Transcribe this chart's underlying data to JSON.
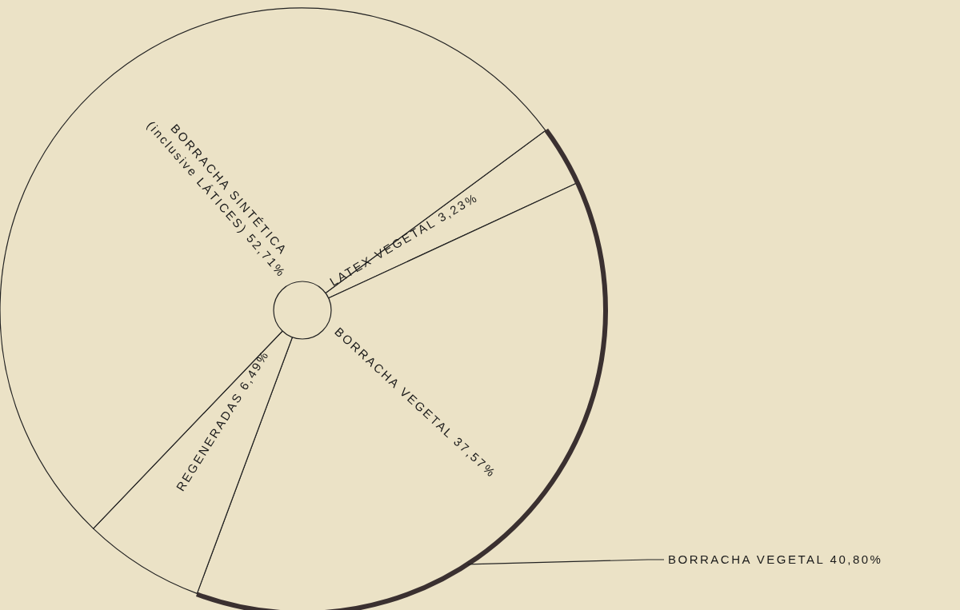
{
  "chart_data": {
    "type": "pie",
    "categories": [
      "LATEX VEGETAL",
      "BORRACHA VEGETAL",
      "REGENERADAS",
      "BORRACHA SINTÉTICA (inclusive LÁTICES)"
    ],
    "values": [
      3.23,
      37.57,
      6.49,
      52.71
    ],
    "value_labels": [
      "3,23%",
      "37,57%",
      "6,49%",
      "52,71%"
    ],
    "colors": [
      "#ebe2c6",
      "#ebe2c6",
      "#ebe2c6",
      "#ebe2c6"
    ],
    "annotations": [
      "BORRACHA VEGETAL 40,80%"
    ]
  }
}
